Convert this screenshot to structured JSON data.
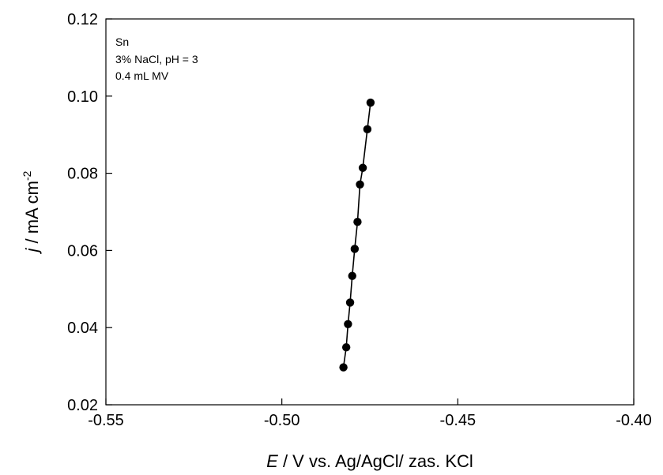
{
  "chart_data": {
    "type": "scatter",
    "title": "",
    "xlabel": {
      "italic": "E",
      "rest": " / V vs. Ag/AgCl/ zas. KCl"
    },
    "ylabel": {
      "italic": "j",
      "rest": " / mA cm",
      "sup": "-2"
    },
    "xlim": [
      -0.55,
      -0.4
    ],
    "ylim": [
      0.02,
      0.12
    ],
    "xticks": [
      -0.55,
      -0.5,
      -0.45,
      -0.4
    ],
    "xtick_labels": [
      "-0.55",
      "-0.50",
      "-0.45",
      "-0.40"
    ],
    "yticks": [
      0.02,
      0.04,
      0.06,
      0.08,
      0.1,
      0.12
    ],
    "ytick_labels": [
      "0.02",
      "0.04",
      "0.06",
      "0.08",
      "0.10",
      "0.12"
    ],
    "annotations": [
      "Sn",
      "3% NaCl, pH = 3",
      "0.4 mL MV"
    ],
    "grid": false,
    "series": [
      {
        "points": [
          {
            "x": -0.4825,
            "y": 0.0297
          },
          {
            "x": -0.4817,
            "y": 0.0349
          },
          {
            "x": -0.4812,
            "y": 0.0409
          },
          {
            "x": -0.4806,
            "y": 0.0465
          },
          {
            "x": -0.48,
            "y": 0.0534
          },
          {
            "x": -0.4793,
            "y": 0.0604
          },
          {
            "x": -0.4785,
            "y": 0.0674
          },
          {
            "x": -0.4778,
            "y": 0.0771
          },
          {
            "x": -0.477,
            "y": 0.0814
          },
          {
            "x": -0.4757,
            "y": 0.0914
          },
          {
            "x": -0.4748,
            "y": 0.0983
          }
        ],
        "color": "#000000",
        "line": true,
        "marker": "circle"
      }
    ]
  }
}
